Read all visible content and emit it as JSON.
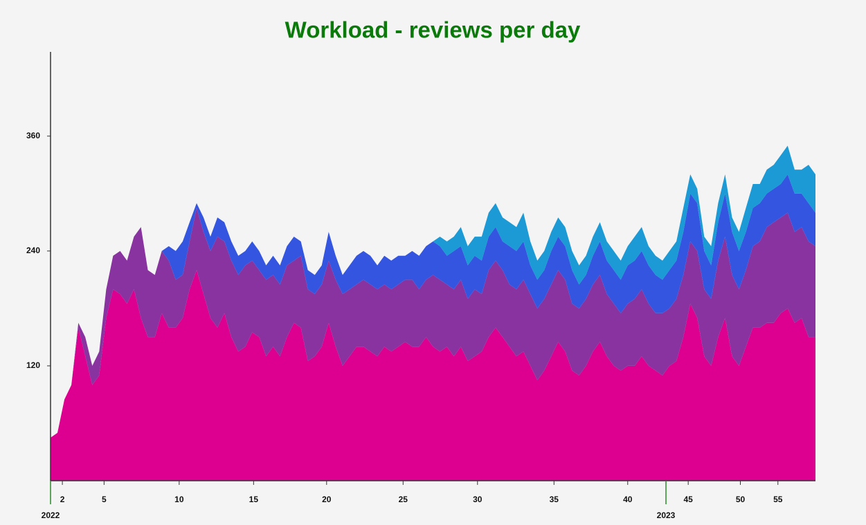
{
  "chart_data": {
    "type": "stacked_area",
    "title": "Workload - reviews per day",
    "x": [
      0,
      1,
      2,
      3,
      4,
      5,
      6,
      7,
      8,
      9,
      10,
      11,
      12,
      13,
      14,
      15,
      16,
      17,
      18,
      19,
      20,
      21,
      22,
      23,
      24,
      25,
      26,
      27,
      28,
      29,
      30,
      31,
      32,
      33,
      34,
      35,
      36,
      37,
      38,
      39,
      40,
      41,
      42,
      43,
      44,
      45,
      46,
      47,
      48,
      49,
      50,
      51,
      52,
      53,
      54,
      55,
      56,
      57,
      58,
      59,
      60,
      61,
      62,
      63,
      64,
      65,
      66,
      67,
      68,
      69,
      70,
      71,
      72,
      73,
      74,
      75,
      76,
      77,
      78,
      79,
      80,
      81,
      82,
      83,
      84,
      85,
      86,
      87,
      88,
      89,
      90,
      91,
      92,
      93,
      94,
      95,
      96,
      97,
      98,
      99,
      100,
      101,
      102,
      103,
      104,
      105,
      106,
      107,
      108,
      109,
      110
    ],
    "series": [
      {
        "color": "#dd0090",
        "values": [
          45,
          50,
          85,
          100,
          160,
          130,
          100,
          110,
          170,
          200,
          195,
          185,
          200,
          170,
          150,
          150,
          175,
          160,
          160,
          170,
          200,
          220,
          195,
          170,
          160,
          175,
          150,
          135,
          140,
          155,
          150,
          130,
          140,
          130,
          150,
          165,
          160,
          125,
          130,
          140,
          165,
          140,
          120,
          130,
          140,
          140,
          135,
          130,
          140,
          135,
          140,
          145,
          140,
          140,
          150,
          140,
          135,
          140,
          130,
          140,
          125,
          130,
          135,
          150,
          160,
          150,
          140,
          130,
          135,
          120,
          105,
          115,
          130,
          145,
          135,
          115,
          110,
          120,
          135,
          145,
          130,
          120,
          115,
          120,
          120,
          130,
          120,
          115,
          110,
          120,
          125,
          150,
          185,
          170,
          130,
          120,
          150,
          170,
          130,
          120,
          140,
          160,
          160,
          165,
          165,
          175,
          180,
          165,
          170,
          150,
          150
        ]
      },
      {
        "color": "#8833a0",
        "values": [
          0,
          0,
          0,
          0,
          5,
          20,
          20,
          25,
          30,
          35,
          45,
          45,
          55,
          95,
          70,
          65,
          65,
          70,
          50,
          45,
          50,
          65,
          65,
          70,
          95,
          75,
          80,
          80,
          85,
          75,
          70,
          80,
          75,
          75,
          75,
          65,
          75,
          75,
          65,
          65,
          65,
          70,
          75,
          70,
          65,
          70,
          70,
          70,
          65,
          65,
          65,
          65,
          70,
          60,
          60,
          75,
          75,
          65,
          70,
          70,
          65,
          70,
          60,
          70,
          70,
          70,
          65,
          70,
          75,
          75,
          75,
          75,
          75,
          75,
          75,
          70,
          70,
          70,
          70,
          70,
          65,
          65,
          60,
          65,
          70,
          70,
          65,
          60,
          65,
          60,
          65,
          65,
          65,
          70,
          70,
          70,
          80,
          85,
          85,
          80,
          80,
          85,
          90,
          100,
          105,
          100,
          100,
          95,
          95,
          100,
          95
        ]
      },
      {
        "color": "#3355e0",
        "values": [
          0,
          0,
          0,
          0,
          0,
          0,
          0,
          0,
          0,
          0,
          0,
          0,
          0,
          0,
          0,
          0,
          0,
          15,
          30,
          35,
          20,
          5,
          15,
          15,
          20,
          20,
          20,
          20,
          15,
          20,
          20,
          15,
          20,
          20,
          20,
          25,
          15,
          20,
          20,
          20,
          30,
          25,
          20,
          25,
          30,
          30,
          30,
          25,
          30,
          30,
          30,
          25,
          30,
          35,
          35,
          35,
          35,
          30,
          40,
          35,
          35,
          35,
          35,
          35,
          35,
          30,
          40,
          40,
          40,
          30,
          30,
          30,
          35,
          35,
          35,
          35,
          25,
          25,
          30,
          35,
          35,
          35,
          35,
          40,
          40,
          40,
          40,
          40,
          35,
          40,
          40,
          45,
          50,
          50,
          40,
          35,
          40,
          45,
          45,
          40,
          40,
          40,
          40,
          35,
          35,
          35,
          40,
          40,
          35,
          40,
          35
        ]
      },
      {
        "color": "#1b9ad6",
        "values": [
          0,
          0,
          0,
          0,
          0,
          0,
          0,
          0,
          0,
          0,
          0,
          0,
          0,
          0,
          0,
          0,
          0,
          0,
          0,
          0,
          0,
          0,
          0,
          0,
          0,
          0,
          0,
          0,
          0,
          0,
          0,
          0,
          0,
          0,
          0,
          0,
          0,
          0,
          0,
          0,
          0,
          0,
          0,
          0,
          0,
          0,
          0,
          0,
          0,
          0,
          0,
          0,
          0,
          0,
          0,
          0,
          10,
          15,
          15,
          20,
          20,
          20,
          25,
          25,
          25,
          25,
          25,
          25,
          30,
          25,
          20,
          20,
          20,
          20,
          20,
          20,
          20,
          20,
          20,
          20,
          20,
          20,
          20,
          20,
          25,
          25,
          20,
          20,
          20,
          20,
          20,
          25,
          20,
          15,
          15,
          20,
          20,
          20,
          15,
          20,
          25,
          25,
          20,
          25,
          25,
          30,
          30,
          25,
          25,
          40,
          40
        ]
      }
    ],
    "xlim": [
      0,
      110
    ],
    "xticks": [
      {
        "value": 1.7,
        "label": "2"
      },
      {
        "value": 7.7,
        "label": "5"
      },
      {
        "value": 18.5,
        "label": "10"
      },
      {
        "value": 29.2,
        "label": "15"
      },
      {
        "value": 39.7,
        "label": "20"
      },
      {
        "value": 50.7,
        "label": "25"
      },
      {
        "value": 61.4,
        "label": "30"
      },
      {
        "value": 72.4,
        "label": "35"
      },
      {
        "value": 83.0,
        "label": "40"
      },
      {
        "value": 91.7,
        "label": "45"
      },
      {
        "value": 99.2,
        "label": "50"
      },
      {
        "value": 104.6,
        "label": "55"
      }
    ],
    "year_markers": [
      {
        "value": 0,
        "label": "2022"
      },
      {
        "value": 88.5,
        "label": "2023"
      }
    ],
    "year_color": "#2a8a2a",
    "ylim": [
      0,
      448
    ],
    "yticks": [
      120,
      240,
      360
    ],
    "grid": false
  }
}
